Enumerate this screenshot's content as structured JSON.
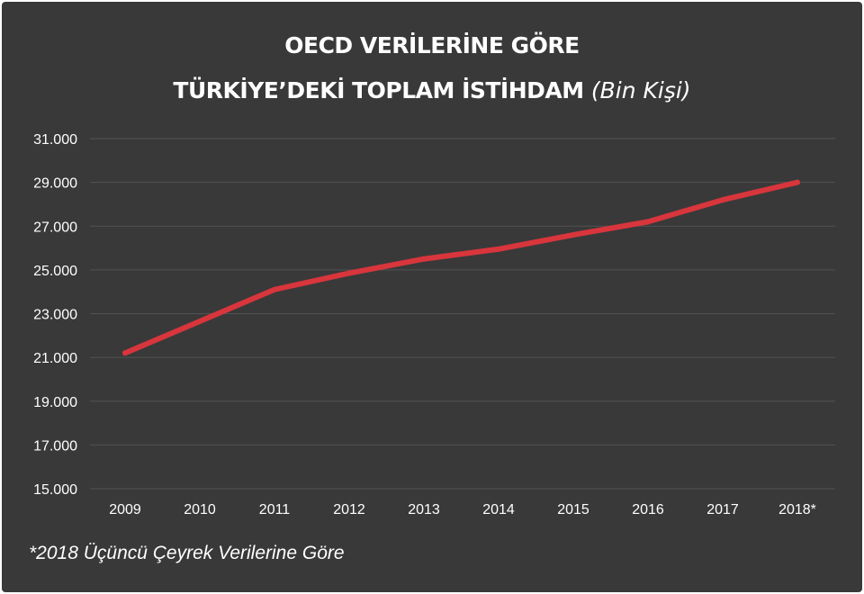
{
  "title_line1": "OECD VERİLERİNE GÖRE",
  "title_line2": "TÜRKİYE’DEKİ TOPLAM İSTİHDAM",
  "title_unit": "(Bin Kişi)",
  "footnote": "*2018 Üçüncü Çeyrek Verilerine Göre",
  "colors": {
    "background": "#393939",
    "line": "#d8353c",
    "grid": "#525252",
    "text": "#ffffff"
  },
  "chart_data": {
    "type": "line",
    "title": "OECD VERİLERİNE GÖRE TÜRKİYE’DEKİ TOPLAM İSTİHDAM (Bin Kişi)",
    "xlabel": "",
    "ylabel": "",
    "categories": [
      "2009",
      "2010",
      "2011",
      "2012",
      "2013",
      "2014",
      "2015",
      "2016",
      "2017",
      "2018*"
    ],
    "series": [
      {
        "values": [
          21200,
          22650,
          24100,
          24850,
          25500,
          25950,
          26600,
          27200,
          28200,
          29000
        ]
      }
    ],
    "yticks": [
      "15.000",
      "17.000",
      "19.000",
      "21.000",
      "23.000",
      "25.000",
      "27.000",
      "29.000",
      "31.000"
    ],
    "ylim": [
      15000,
      31000
    ],
    "grid": true,
    "legend": "none"
  }
}
